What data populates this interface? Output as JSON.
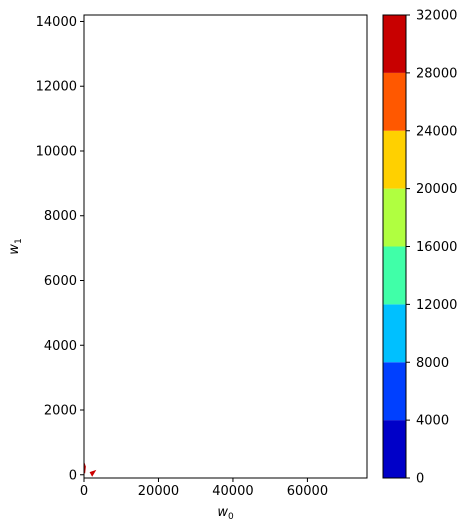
{
  "chart_data": {
    "type": "contour",
    "xlabel": "w",
    "xlabel_sub": "0",
    "ylabel": "w",
    "ylabel_sub": "1",
    "xlim": [
      0,
      76000
    ],
    "ylim": [
      -100,
      14200
    ],
    "x_ticks": [
      0,
      20000,
      40000,
      60000
    ],
    "x_tick_labels": [
      "0",
      "20000",
      "40000",
      "60000"
    ],
    "y_ticks": [
      0,
      2000,
      4000,
      6000,
      8000,
      10000,
      12000,
      14000
    ],
    "y_tick_labels": [
      "0",
      "2000",
      "4000",
      "6000",
      "8000",
      "10000",
      "12000",
      "14000"
    ],
    "grid": false,
    "colorbar": {
      "levels": [
        0,
        4000,
        8000,
        12000,
        16000,
        20000,
        24000,
        28000,
        32000
      ],
      "tick_labels": [
        "0",
        "4000",
        "8000",
        "12000",
        "16000",
        "20000",
        "24000",
        "28000",
        "32000"
      ],
      "colors": [
        "#0000c8",
        "#0040ff",
        "#00c0ff",
        "#40ffa8",
        "#b0ff40",
        "#ffd000",
        "#ff5800",
        "#c80000"
      ]
    },
    "visible_contour_region": {
      "description_color": "#cc0000",
      "points": [
        [
          0,
          400
        ],
        [
          400,
          150
        ],
        [
          3000,
          120
        ],
        [
          1800,
          0
        ]
      ]
    }
  }
}
